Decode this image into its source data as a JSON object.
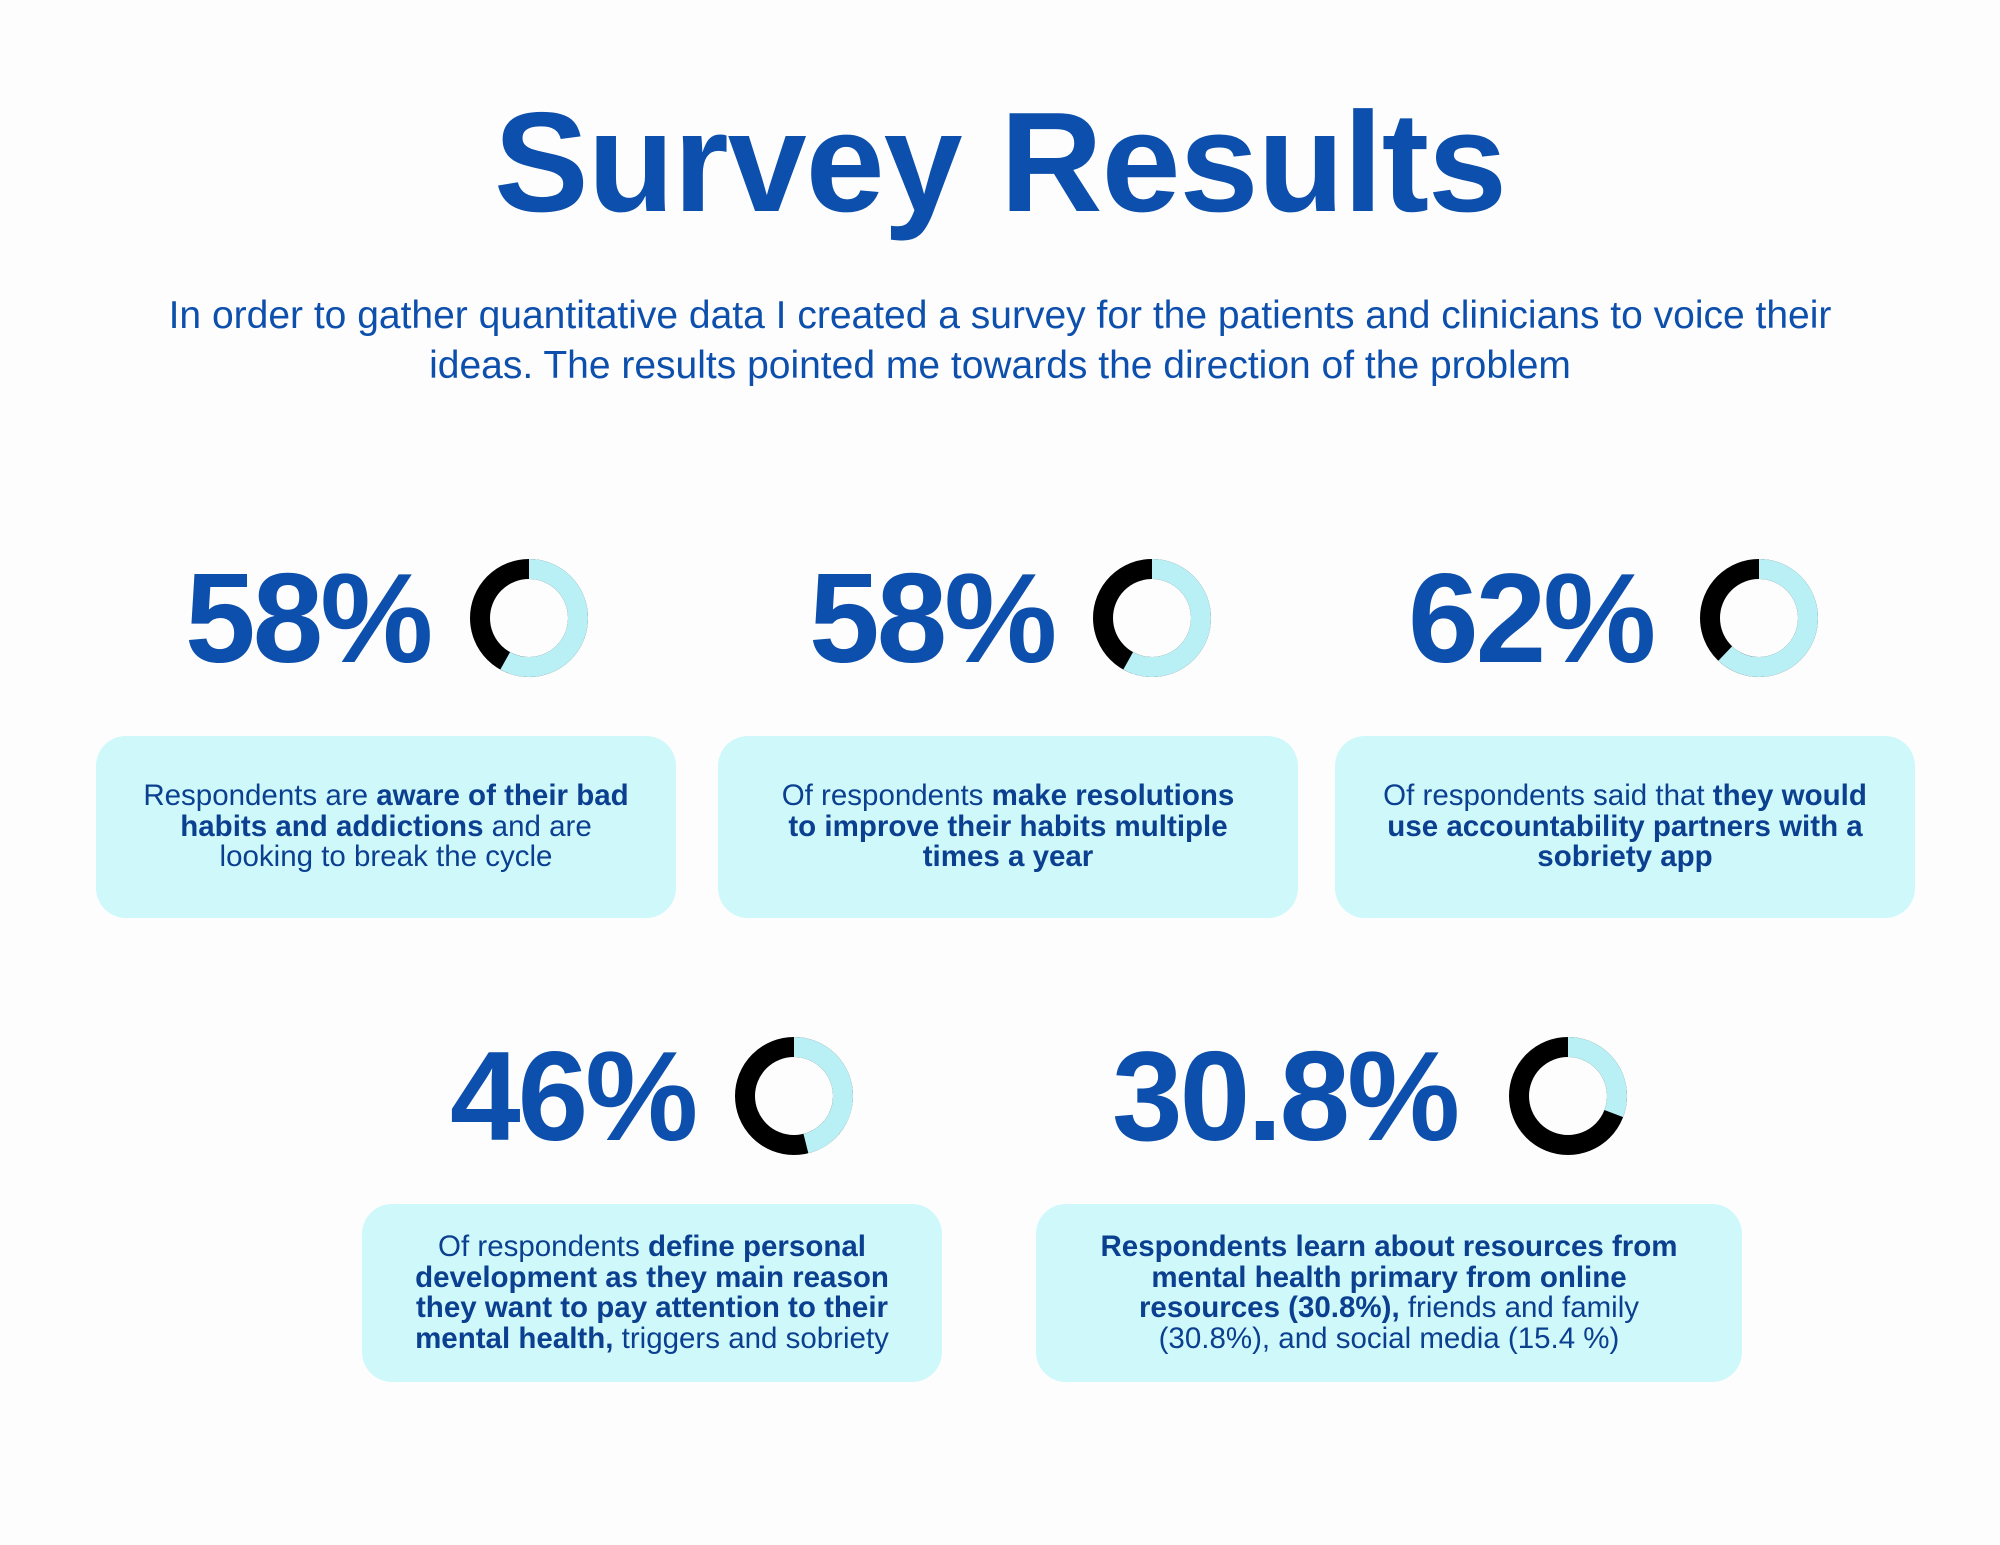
{
  "title": "Survey Results",
  "intro": "In order to gather quantitative data I created a survey for the patients and clinicians to voice their ideas. The results pointed me towards the direction of the problem",
  "colors": {
    "primary_blue": "#0d4fac",
    "card_bg": "#cff8fa",
    "donut_light": "#b8f0f5",
    "donut_dark": "#000000"
  },
  "stats": [
    {
      "percent_label": "58%",
      "value": 58,
      "parts": [
        {
          "text": "Respondents are ",
          "bold": false
        },
        {
          "text": "aware of their bad habits and addictions",
          "bold": true
        },
        {
          "text": " and are looking to break the cycle",
          "bold": false
        }
      ]
    },
    {
      "percent_label": "58%",
      "value": 58,
      "parts": [
        {
          "text": "Of respondents ",
          "bold": false
        },
        {
          "text": "make resolutions to improve their habits multiple times a year",
          "bold": true
        }
      ]
    },
    {
      "percent_label": "62%",
      "value": 62,
      "parts": [
        {
          "text": "Of respondents said that ",
          "bold": false
        },
        {
          "text": "they would use accountability partners with a sobriety app",
          "bold": true
        }
      ]
    },
    {
      "percent_label": "46%",
      "value": 46,
      "parts": [
        {
          "text": "Of respondents ",
          "bold": false
        },
        {
          "text": "define personal development as they main reason they want to pay attention to their mental health,",
          "bold": true
        },
        {
          "text": " triggers and sobriety",
          "bold": false
        }
      ]
    },
    {
      "percent_label": "30.8%",
      "value": 30.8,
      "parts": [
        {
          "text": "Respondents learn about resources from mental health primary from online resources (30.8%),",
          "bold": true
        },
        {
          "text": " friends and family (30.8%), and social media (15.4 %)",
          "bold": false
        }
      ]
    }
  ]
}
